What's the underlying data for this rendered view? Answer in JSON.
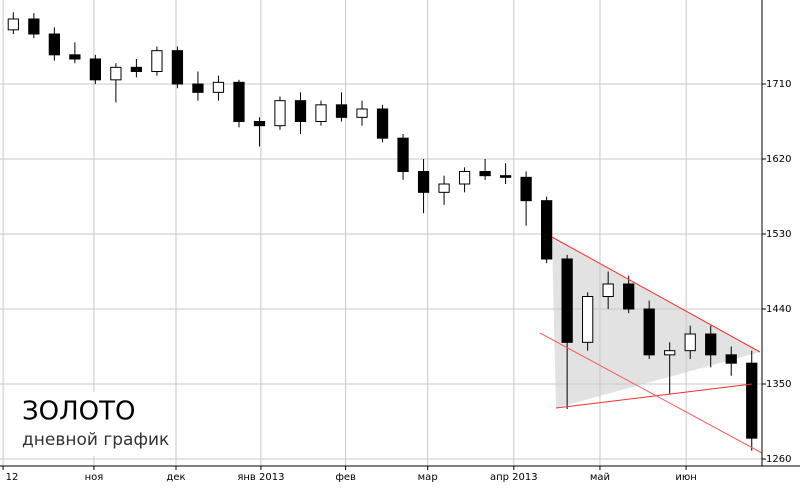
{
  "chart_data": {
    "type": "candlestick",
    "title": "ЗОЛОТО",
    "subtitle": "дневной график",
    "x": [
      0.5,
      1.5,
      2.5,
      3.5,
      4.5,
      5.5,
      6.5,
      7.5,
      8.5,
      9.5,
      10.5,
      11.5,
      12.5,
      13.5,
      14.5,
      15.5,
      16.5,
      17.5,
      18.5,
      19.5,
      20.5,
      21.5,
      22.5,
      23.5,
      24.5,
      25.5,
      26.5,
      27.5,
      28.5,
      29.5,
      30.5,
      31.5,
      32.5,
      33.5,
      34.5,
      35.5,
      36.5
    ],
    "open": [
      1775,
      1788,
      1770,
      1745,
      1740,
      1715,
      1730,
      1725,
      1750,
      1710,
      1700,
      1712,
      1665,
      1660,
      1690,
      1665,
      1685,
      1670,
      1680,
      1645,
      1605,
      1580,
      1590,
      1605,
      1600,
      1598,
      1570,
      1500,
      1400,
      1455,
      1470,
      1440,
      1385,
      1390,
      1410,
      1385,
      1375
    ],
    "high": [
      1796,
      1795,
      1778,
      1760,
      1745,
      1735,
      1740,
      1755,
      1755,
      1725,
      1720,
      1715,
      1670,
      1695,
      1700,
      1690,
      1700,
      1690,
      1685,
      1650,
      1620,
      1600,
      1610,
      1620,
      1615,
      1605,
      1575,
      1505,
      1460,
      1485,
      1480,
      1450,
      1400,
      1420,
      1420,
      1395,
      1390
    ],
    "low": [
      1770,
      1765,
      1738,
      1735,
      1710,
      1688,
      1718,
      1720,
      1705,
      1690,
      1690,
      1658,
      1635,
      1655,
      1650,
      1660,
      1665,
      1660,
      1640,
      1595,
      1555,
      1565,
      1580,
      1595,
      1590,
      1540,
      1495,
      1320,
      1390,
      1440,
      1435,
      1380,
      1338,
      1380,
      1370,
      1360,
      1270
    ],
    "close": [
      1788,
      1770,
      1745,
      1740,
      1715,
      1730,
      1725,
      1750,
      1710,
      1700,
      1712,
      1665,
      1660,
      1690,
      1665,
      1685,
      1670,
      1680,
      1645,
      1605,
      1580,
      1590,
      1605,
      1600,
      1598,
      1570,
      1500,
      1400,
      1455,
      1470,
      1440,
      1385,
      1390,
      1410,
      1385,
      1375,
      1285
    ],
    "xlim": [
      -0.15,
      37.0
    ],
    "xticks": [
      {
        "value": 0,
        "label": "12"
      },
      {
        "value": 4.43,
        "label": "ноя"
      },
      {
        "value": 8.43,
        "label": "дек"
      },
      {
        "value": 12.57,
        "label": "янв 2013"
      },
      {
        "value": 16.7,
        "label": "фев"
      },
      {
        "value": 20.7,
        "label": "мар"
      },
      {
        "value": 24.9,
        "label": "апр 2013"
      },
      {
        "value": 29.1,
        "label": "май"
      },
      {
        "value": 33.3,
        "label": "июн"
      }
    ],
    "ylim": [
      1251.6,
      1810.8
    ],
    "yticks": [
      1260,
      1350,
      1440,
      1530,
      1620,
      1710
    ],
    "grid": true
  }
}
